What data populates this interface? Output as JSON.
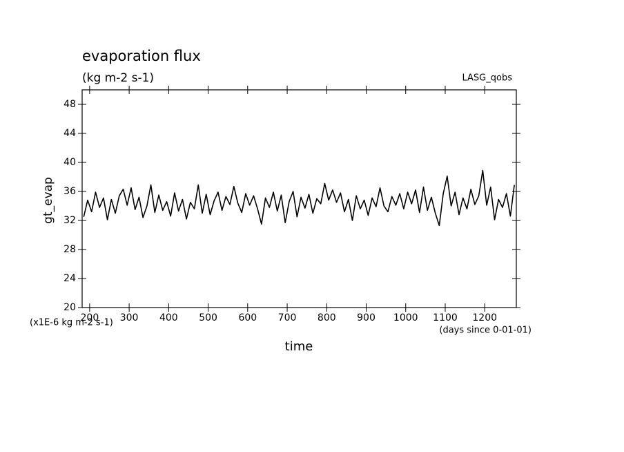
{
  "chart_data": {
    "type": "line",
    "title": "evaporation flux",
    "subtitle": "(kg m-2 s-1)",
    "source": "LASG_qobs",
    "ylabel": "gt_evap",
    "xlabel": "time",
    "yunit": "(x1E-6 kg m-2 s-1)",
    "xunit": "(days since 0-01-01)",
    "xlim": [
      181,
      1280
    ],
    "ylim": [
      20,
      50
    ],
    "xticks": [
      200,
      300,
      400,
      500,
      600,
      700,
      800,
      900,
      1000,
      1100,
      1200
    ],
    "yticks": [
      20,
      24,
      28,
      32,
      36,
      40,
      44,
      48
    ],
    "color": "#000000",
    "x": [
      185,
      195,
      205,
      215,
      225,
      235,
      245,
      255,
      265,
      275,
      285,
      295,
      305,
      315,
      325,
      335,
      345,
      355,
      365,
      375,
      385,
      395,
      405,
      415,
      425,
      435,
      445,
      455,
      465,
      475,
      485,
      495,
      505,
      515,
      525,
      535,
      545,
      555,
      565,
      575,
      585,
      595,
      605,
      615,
      625,
      635,
      645,
      655,
      665,
      675,
      685,
      695,
      705,
      715,
      725,
      735,
      745,
      755,
      765,
      775,
      785,
      795,
      805,
      815,
      825,
      835,
      845,
      855,
      865,
      875,
      885,
      895,
      905,
      915,
      925,
      935,
      945,
      955,
      965,
      975,
      985,
      995,
      1005,
      1015,
      1025,
      1035,
      1045,
      1055,
      1065,
      1075,
      1085,
      1095,
      1105,
      1115,
      1125,
      1135,
      1145,
      1155,
      1165,
      1175,
      1185,
      1195,
      1205,
      1215,
      1225,
      1235,
      1245,
      1255,
      1265,
      1275
    ],
    "values": [
      32.5,
      34.8,
      33.2,
      35.9,
      33.8,
      35.1,
      32.1,
      34.9,
      33.0,
      35.4,
      36.3,
      34.1,
      36.5,
      33.5,
      35.2,
      32.4,
      34.0,
      36.9,
      33.1,
      35.5,
      33.4,
      34.6,
      32.6,
      35.8,
      33.3,
      34.9,
      32.2,
      34.5,
      33.6,
      36.9,
      33.0,
      35.6,
      32.8,
      34.7,
      35.9,
      33.4,
      35.3,
      34.2,
      36.7,
      34.4,
      33.1,
      35.7,
      34.1,
      35.4,
      33.6,
      31.5,
      35.1,
      33.8,
      35.9,
      33.3,
      35.5,
      31.7,
      34.6,
      36.0,
      32.5,
      35.2,
      33.7,
      35.6,
      33.0,
      35.0,
      34.3,
      37.1,
      34.8,
      36.2,
      34.5,
      35.8,
      33.2,
      34.9,
      32.0,
      35.4,
      33.6,
      34.8,
      32.7,
      35.1,
      33.9,
      36.5,
      34.0,
      33.2,
      35.3,
      34.1,
      35.7,
      33.6,
      35.9,
      34.3,
      36.2,
      33.1,
      36.6,
      33.4,
      35.2,
      33.0,
      31.3,
      35.7,
      38.1,
      34.0,
      35.9,
      32.8,
      35.1,
      33.6,
      36.3,
      34.2,
      35.4,
      38.9,
      34.1,
      36.6,
      32.1,
      34.9,
      33.8,
      35.7,
      32.6,
      36.9
    ]
  }
}
